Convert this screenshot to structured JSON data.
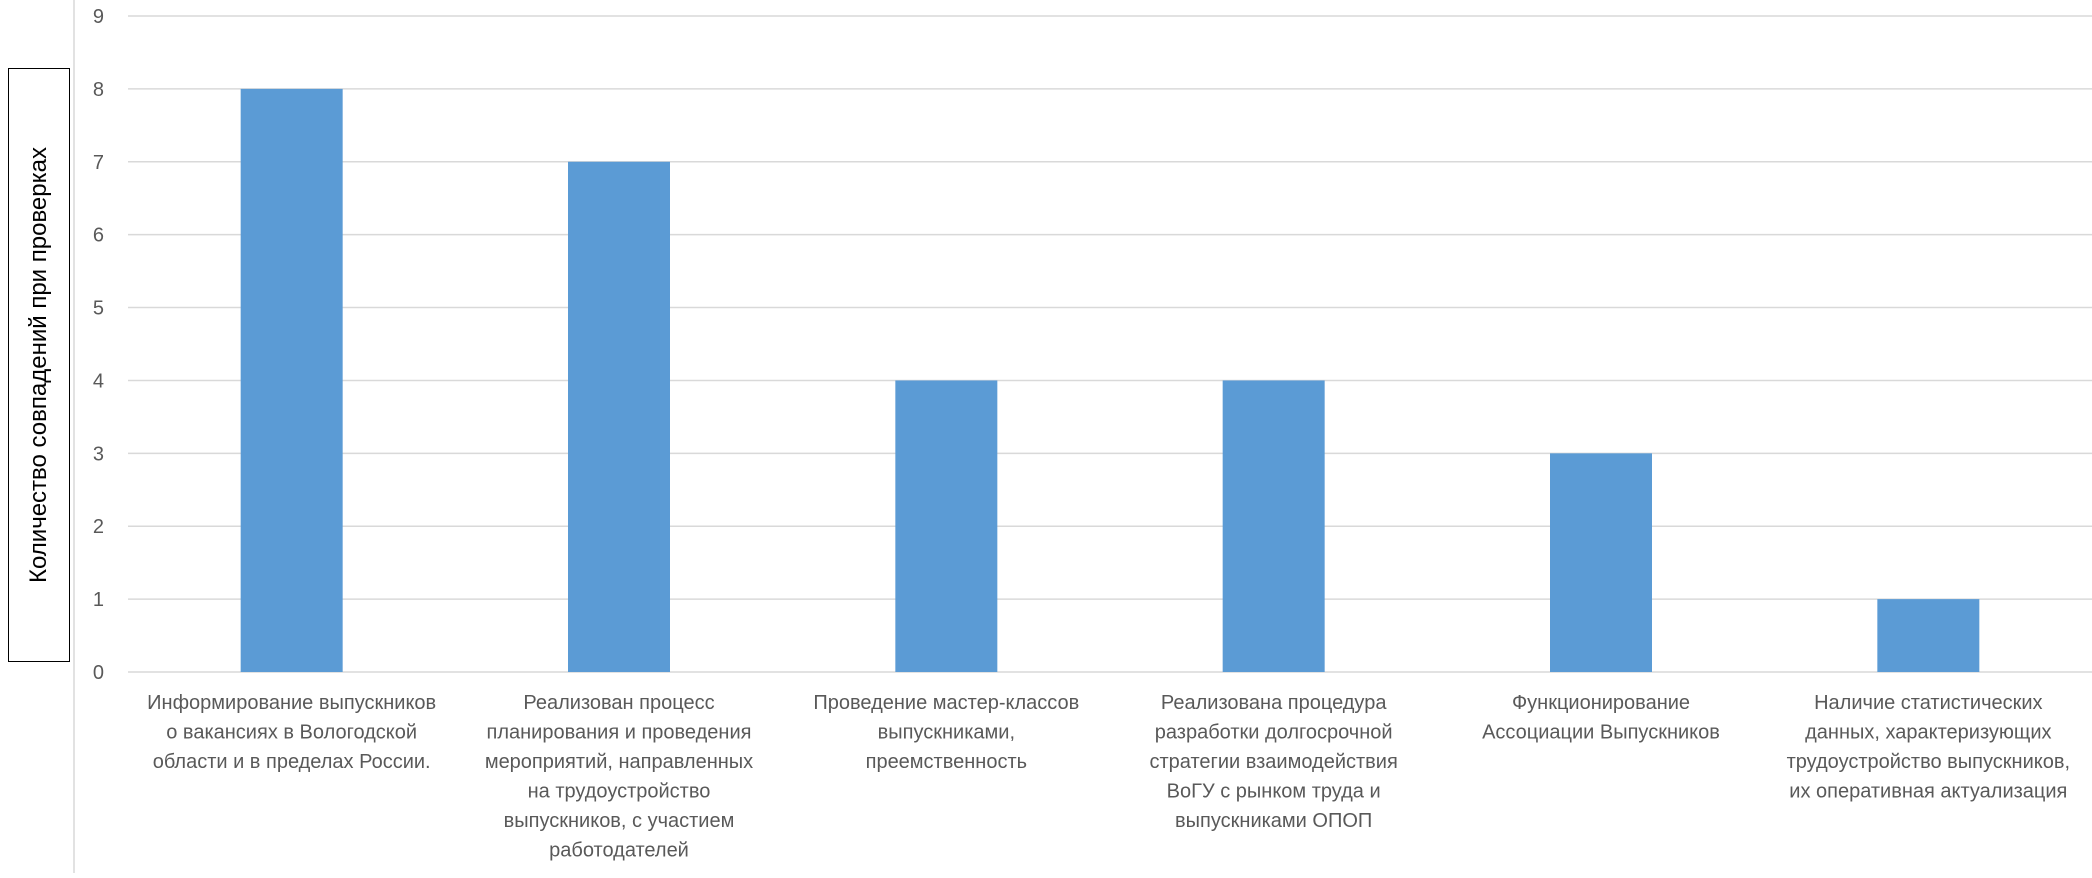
{
  "chart_data": {
    "type": "bar",
    "title": "",
    "xlabel": "",
    "ylabel": "Количество совпадений при проверках",
    "ylim": [
      0,
      9
    ],
    "yticks": [
      0,
      1,
      2,
      3,
      4,
      5,
      6,
      7,
      8,
      9
    ],
    "grid": true,
    "legend": "none",
    "categories": [
      [
        "Информирование выпускников",
        "о вакансиях в Вологодской",
        "области и в пределах России."
      ],
      [
        "Реализован процесс",
        "планирования и проведения",
        "мероприятий, направленных",
        "на трудоустройство",
        "выпускников, с участием",
        "работодателей"
      ],
      [
        "Проведение мастер-классов",
        "выпускниками,",
        "преемственность"
      ],
      [
        "Реализована процедура",
        "разработки долгосрочной",
        "стратегии взаимодействия",
        "ВоГУ с рынком труда и",
        "выпускниками ОПОП"
      ],
      [
        "Функционирование",
        "Ассоциации Выпускников"
      ],
      [
        "Наличие статистических",
        "данных, характеризующих",
        "трудоустройство выпускников,",
        "их оперативная актуализация"
      ]
    ],
    "values": [
      8,
      7,
      4,
      4,
      3,
      1
    ],
    "colors": {
      "bar": "#5B9BD5",
      "grid": "#D9D9D9",
      "text": "#595959"
    }
  }
}
